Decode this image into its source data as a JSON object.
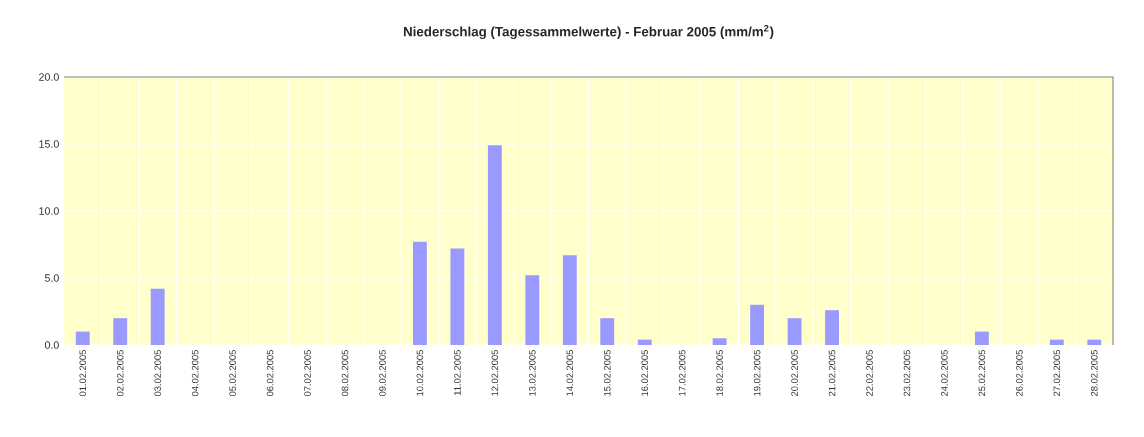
{
  "chart_data": {
    "type": "bar",
    "title": "Niederschlag (Tagessammelwerte) - Februar 2005 (mm/m$^{2}$)",
    "categories": [
      "01.02.2005",
      "02.02.2005",
      "03.02.2005",
      "04.02.2005",
      "05.02.2005",
      "06.02.2005",
      "07.02.2005",
      "08.02.2005",
      "09.02.2005",
      "10.02.2005",
      "11.02.2005",
      "12.02.2005",
      "13.02.2005",
      "14.02.2005",
      "15.02.2005",
      "16.02.2005",
      "17.02.2005",
      "18.02.2005",
      "19.02.2005",
      "20.02.2005",
      "21.02.2005",
      "22.02.2005",
      "23.02.2005",
      "24.02.2005",
      "25.02.2005",
      "26.02.2005",
      "27.02.2005",
      "28.02.2005"
    ],
    "values": [
      1.0,
      2.0,
      4.2,
      0,
      0,
      0,
      0,
      0,
      0,
      7.7,
      7.2,
      14.9,
      5.2,
      6.7,
      2.0,
      0.4,
      0,
      0.5,
      3.0,
      2.0,
      2.6,
      0,
      0,
      0,
      1.0,
      0,
      0.4,
      0.4
    ],
    "color": "#9999ff",
    "ylim": [
      0,
      20
    ],
    "yticks": [
      {
        "value": 0,
        "label": "0.0"
      },
      {
        "value": 5,
        "label": "5.0"
      },
      {
        "value": 10,
        "label": "10.0"
      },
      {
        "value": 15,
        "label": "15.0"
      },
      {
        "value": 20,
        "label": "20.0"
      }
    ],
    "grid": true
  }
}
